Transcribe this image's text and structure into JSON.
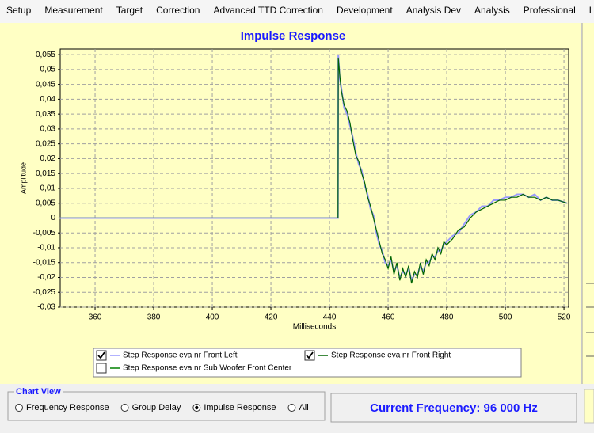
{
  "menu": {
    "items": [
      "Setup",
      "Measurement",
      "Target",
      "Correction",
      "Advanced TTD Correction",
      "Development",
      "Analysis Dev",
      "Analysis",
      "Professional",
      "Lic"
    ]
  },
  "chart_data": {
    "type": "line",
    "title": "Impulse Response",
    "x_label": "Milliseconds",
    "y_label": "Amplitude",
    "xlim": [
      348.1,
      521.6
    ],
    "xticks": [
      360,
      380,
      400,
      420,
      440,
      460,
      480,
      500,
      520
    ],
    "ylim": [
      -0.03,
      0.0569
    ],
    "yticks": [
      {
        "value": 0.055,
        "label": "0,055"
      },
      {
        "value": 0.05,
        "label": "0,05"
      },
      {
        "value": 0.045,
        "label": "0,045"
      },
      {
        "value": 0.04,
        "label": "0,04"
      },
      {
        "value": 0.035,
        "label": "0,035"
      },
      {
        "value": 0.03,
        "label": "0,03"
      },
      {
        "value": 0.025,
        "label": "0,025"
      },
      {
        "value": 0.02,
        "label": "0,02"
      },
      {
        "value": 0.015,
        "label": "0,015"
      },
      {
        "value": 0.01,
        "label": "0,01"
      },
      {
        "value": 0.005,
        "label": "0,005"
      },
      0,
      {
        "value": -0.005,
        "label": "-0,005"
      },
      {
        "value": -0.01,
        "label": "-0,01"
      },
      {
        "value": -0.015,
        "label": "-0,015"
      },
      {
        "value": -0.02,
        "label": "-0,02"
      },
      {
        "value": -0.025,
        "label": "-0,025"
      },
      {
        "value": -0.03,
        "label": "-0,03"
      }
    ],
    "grid": true,
    "x": [
      348,
      442.9,
      443,
      443.5,
      444,
      445,
      446,
      447,
      448,
      449,
      450,
      451,
      452,
      453,
      454,
      455,
      456,
      457,
      458,
      459,
      460,
      461,
      462,
      463,
      464,
      465,
      466,
      467,
      468,
      469,
      470,
      471,
      472,
      473,
      474,
      475,
      476,
      477,
      478,
      479,
      480,
      482,
      484,
      486,
      488,
      490,
      492,
      494,
      496,
      498,
      500,
      502,
      504,
      506,
      508,
      510,
      512,
      514,
      516,
      518,
      521
    ],
    "series": [
      {
        "name": "Step Response eva nr Front Left",
        "color": "#9999ff",
        "checked": true,
        "values": [
          0,
          0,
          0.055,
          0.047,
          0.044,
          0.037,
          0.035,
          0.031,
          0.027,
          0.022,
          0.018,
          0.016,
          0.011,
          0.008,
          0.003,
          0.001,
          -0.005,
          -0.009,
          -0.011,
          -0.015,
          -0.016,
          -0.014,
          -0.018,
          -0.016,
          -0.02,
          -0.018,
          -0.019,
          -0.017,
          -0.021,
          -0.019,
          -0.019,
          -0.016,
          -0.018,
          -0.015,
          -0.015,
          -0.013,
          -0.013,
          -0.011,
          -0.011,
          -0.009,
          -0.008,
          -0.006,
          -0.005,
          -0.002,
          0.001,
          0.002,
          0.004,
          0.004,
          0.006,
          0.006,
          0.007,
          0.007,
          0.008,
          0.008,
          0.007,
          0.008,
          0.006,
          0.007,
          0.006,
          0.006,
          0.005
        ]
      },
      {
        "name": "Step Response eva nr Front Right",
        "color": "#006400",
        "checked": true,
        "values": [
          0,
          0,
          0.054,
          0.048,
          0.043,
          0.038,
          0.036,
          0.032,
          0.026,
          0.021,
          0.019,
          0.015,
          0.012,
          0.007,
          0.004,
          0.0,
          -0.004,
          -0.008,
          -0.012,
          -0.014,
          -0.017,
          -0.013,
          -0.019,
          -0.015,
          -0.021,
          -0.017,
          -0.02,
          -0.016,
          -0.022,
          -0.018,
          -0.02,
          -0.015,
          -0.019,
          -0.014,
          -0.016,
          -0.012,
          -0.014,
          -0.01,
          -0.012,
          -0.008,
          -0.009,
          -0.007,
          -0.004,
          -0.003,
          0.0,
          0.002,
          0.003,
          0.004,
          0.005,
          0.006,
          0.006,
          0.007,
          0.007,
          0.008,
          0.007,
          0.007,
          0.006,
          0.007,
          0.006,
          0.006,
          0.005
        ]
      },
      {
        "name": "Step Response eva nr Sub Woofer Front Center",
        "color": "#008000",
        "checked": false
      }
    ]
  },
  "chart_view": {
    "title": "Chart View",
    "options": [
      "Frequency Response",
      "Group Delay",
      "Impulse Response",
      "All"
    ],
    "selected": 2
  },
  "status": {
    "text": "Current Frequency: 96 000 Hz"
  }
}
